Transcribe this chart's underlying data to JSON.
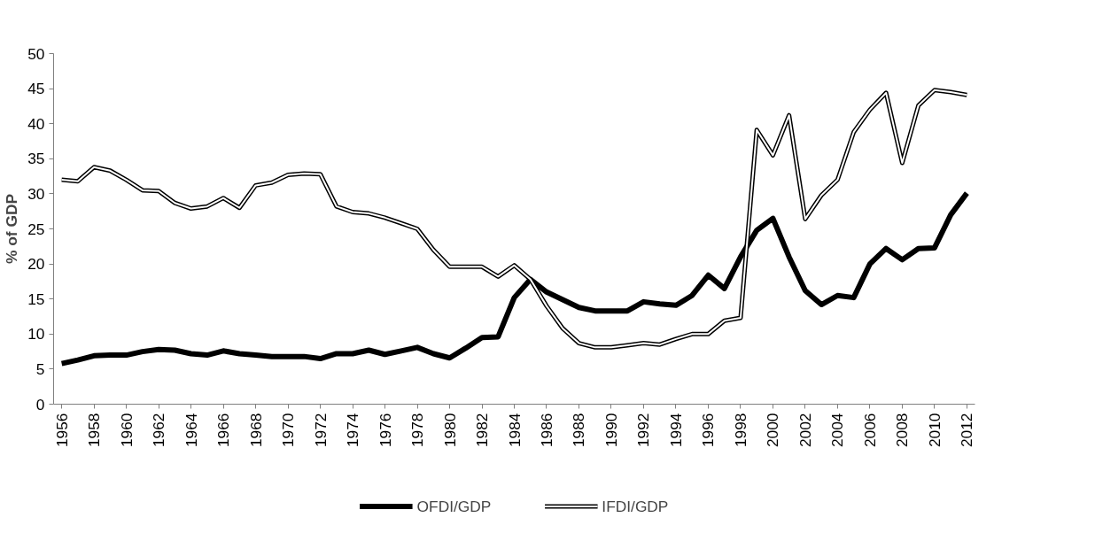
{
  "chart_data": {
    "type": "line",
    "ylabel": "% of GDP",
    "x": [
      1956,
      1957,
      1958,
      1959,
      1960,
      1961,
      1962,
      1963,
      1964,
      1965,
      1966,
      1967,
      1968,
      1969,
      1970,
      1971,
      1972,
      1973,
      1974,
      1975,
      1976,
      1977,
      1978,
      1979,
      1980,
      1981,
      1982,
      1983,
      1984,
      1985,
      1986,
      1987,
      1988,
      1989,
      1990,
      1991,
      1992,
      1993,
      1994,
      1995,
      1996,
      1997,
      1998,
      1999,
      2000,
      2001,
      2002,
      2003,
      2004,
      2005,
      2006,
      2007,
      2008,
      2009,
      2010,
      2011,
      2012
    ],
    "series": [
      {
        "name": "OFDI/GDP",
        "color": "#000000",
        "values": [
          5.8,
          6.3,
          6.9,
          7.0,
          7.0,
          7.5,
          7.8,
          7.7,
          7.2,
          7.0,
          7.6,
          7.2,
          7.0,
          6.8,
          6.8,
          6.8,
          6.5,
          7.2,
          7.2,
          7.7,
          7.1,
          7.6,
          8.1,
          7.2,
          6.6,
          8.0,
          9.5,
          9.6,
          15.2,
          17.8,
          16.0,
          14.9,
          13.8,
          13.3,
          13.3,
          13.3,
          14.6,
          14.3,
          14.1,
          15.5,
          18.4,
          16.5,
          21.0,
          24.8,
          26.5,
          21.0,
          16.2,
          14.2,
          15.5,
          15.2,
          20.0,
          22.2,
          20.6,
          22.2,
          22.3,
          27.0,
          30.1
        ]
      },
      {
        "name": "IFDI/GDP",
        "color": "#000000",
        "values": [
          32.0,
          31.8,
          33.8,
          33.3,
          32.0,
          30.5,
          30.4,
          28.7,
          27.9,
          28.2,
          29.4,
          28.0,
          31.2,
          31.6,
          32.7,
          32.9,
          32.8,
          28.2,
          27.4,
          27.2,
          26.6,
          25.8,
          25.0,
          22.0,
          19.6,
          19.6,
          19.6,
          18.2,
          19.8,
          17.8,
          14.0,
          10.8,
          8.7,
          8.1,
          8.1,
          8.4,
          8.7,
          8.5,
          9.3,
          10.0,
          10.0,
          11.9,
          12.3,
          39.1,
          35.5,
          41.2,
          26.4,
          29.8,
          32.0,
          38.8,
          42.0,
          44.4,
          34.4,
          42.6,
          44.8,
          44.5,
          44.1
        ]
      }
    ],
    "xlim": [
      1955.5,
      2012.5
    ],
    "xticks": [
      1956,
      1958,
      1960,
      1962,
      1964,
      1966,
      1968,
      1970,
      1972,
      1974,
      1976,
      1978,
      1980,
      1982,
      1984,
      1986,
      1988,
      1990,
      1992,
      1994,
      1996,
      1998,
      2000,
      2002,
      2004,
      2006,
      2008,
      2010,
      2012
    ],
    "ylim": [
      0,
      50
    ],
    "yticks": [
      0,
      5,
      10,
      15,
      20,
      25,
      30,
      35,
      40,
      45,
      50
    ],
    "legend": "bottom",
    "grid": false
  }
}
